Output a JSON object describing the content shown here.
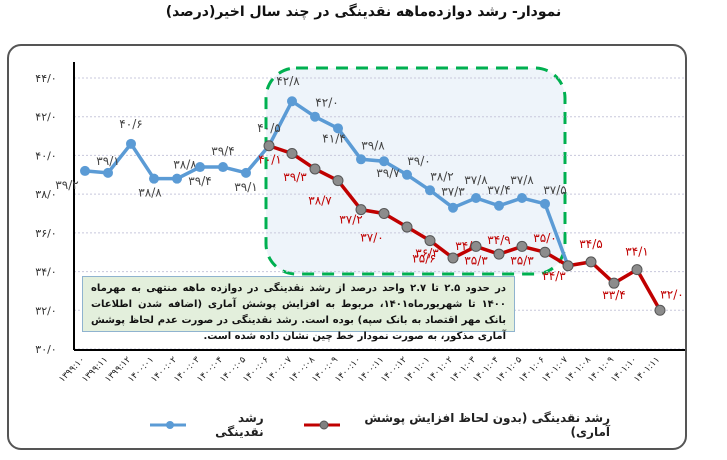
{
  "title": "نمودار- رشد دوازده‌ماهه نقدینگی در چند سال اخیر(درصد)",
  "note": "در حدود ۲.۵ تا ۲.۷ واحد درصد از رشد نقدینگی در دوازده ماهه منتهی به مهرماه ۱۴۰۰ تا شهریورماه۱۴۰۱، مربوط به افزایش پوشش آماری (اضافه شدن اطلاعات بانک مهر اقتصاد به بانک سپه) بوده است. رشد نقدینگی در صورت عدم لحاظ پوشش آماری مذکور، به صورت نمودار خط چین نشان داده شده است.",
  "legend": {
    "series_red": "رشد نقدینگی (بدون لحاظ افزایش پوشش آماری)",
    "series_blue": "رشد نقدینگی"
  },
  "colors": {
    "blue": "#5b9bd5",
    "red": "#c00000",
    "marker_gray": "#808080",
    "highlight_border": "#00b050",
    "note_bg": "#e3efdc"
  },
  "chart_data": {
    "type": "line",
    "title": "نمودار- رشد دوازده‌ماهه نقدینگی در چند سال اخیر(درصد)",
    "xlabel": "",
    "ylabel": "",
    "ylim": [
      30,
      44
    ],
    "y_ticks": [
      "۴۴/۰",
      "۴۲/۰",
      "۴۰/۰",
      "۳۸/۰",
      "۳۶/۰",
      "۳۴/۰",
      "۳۲/۰",
      "۳۰/۰"
    ],
    "y_tick_values": [
      44,
      42,
      40,
      38,
      36,
      34,
      32,
      30
    ],
    "grid": true,
    "legend_position": "bottom",
    "categories": [
      "۱۳۹۹:۱۰",
      "۱۳۹۹:۱۱",
      "۱۳۹۹:۱۲",
      "۱۴۰۰:۰۱",
      "۱۴۰۰:۰۲",
      "۱۴۰۰:۰۳",
      "۱۴۰۰:۰۴",
      "۱۴۰۰:۰۵",
      "۱۴۰۰:۰۶",
      "۱۴۰۰:۰۷",
      "۱۴۰۰:۰۸",
      "۱۴۰۰:۰۹",
      "۱۴۰۰:۱۰",
      "۱۴۰۰:۱۱",
      "۱۴۰۰:۱۲",
      "۱۴۰۱:۰۱",
      "۱۴۰۱:۰۲",
      "۱۴۰۱:۰۳",
      "۱۴۰۱:۰۴",
      "۱۴۰۱:۰۵",
      "۱۴۰۱:۰۶",
      "۱۴۰۱:۰۷",
      "۱۴۰۱:۰۸",
      "۱۴۰۱:۰۹",
      "۱۴۰۱:۱۰",
      "۱۴۰۱:۱۱"
    ],
    "series": [
      {
        "name": "رشد نقدینگی",
        "color": "#5b9bd5",
        "values": [
          39.2,
          39.1,
          40.6,
          38.8,
          38.8,
          39.4,
          39.4,
          39.1,
          40.5,
          42.8,
          42.0,
          41.4,
          39.8,
          39.7,
          39.0,
          38.2,
          37.3,
          37.8,
          37.4,
          37.8,
          37.5,
          34.3,
          null,
          null,
          null,
          null
        ],
        "labels": [
          "۳۹/۲",
          "۳۹/۱",
          "۴۰/۶",
          "۳۸/۸",
          "۳۸/۸",
          "۳۹/۴",
          "۳۹/۴",
          "۳۹/۱",
          "۴۰/۵",
          "۴۲/۸",
          "۴۲/۰",
          "۴۱/۴",
          "۳۹/۸",
          "۳۹/۷",
          "۳۹/۰",
          "۳۸/۲",
          "۳۷/۳",
          "۳۷/۸",
          "۳۷/۴",
          "۳۷/۸",
          "۳۷/۵",
          "",
          "",
          "",
          "",
          ""
        ]
      },
      {
        "name": "رشد نقدینگی (بدون لحاظ افزایش پوشش آماری)",
        "color": "#c00000",
        "values": [
          null,
          null,
          null,
          null,
          null,
          null,
          null,
          null,
          40.5,
          40.1,
          39.3,
          38.7,
          37.2,
          37.0,
          36.3,
          35.6,
          34.7,
          35.3,
          34.9,
          35.3,
          35.0,
          34.3,
          34.5,
          33.4,
          34.1,
          32.0
        ],
        "labels": [
          "",
          "",
          "",
          "",
          "",
          "",
          "",
          "",
          "",
          "۴۰/۱",
          "۳۹/۳",
          "۳۸/۷",
          "۳۷/۲",
          "۳۷/۰",
          "۳۶/۳",
          "۳۵/۶",
          "۳۴/۷",
          "۳۵/۳",
          "۳۴/۹",
          "۳۵/۳",
          "۳۵/۰",
          "۳۴/۳",
          "۳۴/۵",
          "۳۳/۴",
          "۳۴/۱",
          "۳۲/۰"
        ]
      }
    ],
    "annotations": [
      "highlighted period 1400:07 – 1401:06 (green dashed box)"
    ]
  }
}
